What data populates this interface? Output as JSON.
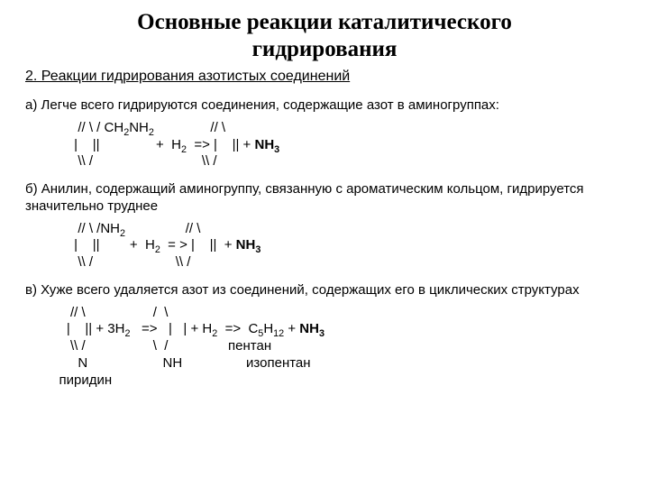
{
  "title_line1": "Основные реакции каталитического",
  "title_line2": "гидрирования",
  "subtitle": "2. Реакции гидрирования азотистых соединений",
  "para_a": "а) Легче всего гидрируются соединения, содержащие азот в аминогруппах:",
  "para_b": "б) Анилин, содержащий аминогруппу, связанную с ароматическим кольцом, гидрируется значительно труднее",
  "para_c": "в) Хуже всего удаляется азот из соединений, содержащих его в циклических структурах",
  "label_pyridine": "пиридин",
  "label_pentane": "пентан",
  "label_isopentane": "изопентан"
}
